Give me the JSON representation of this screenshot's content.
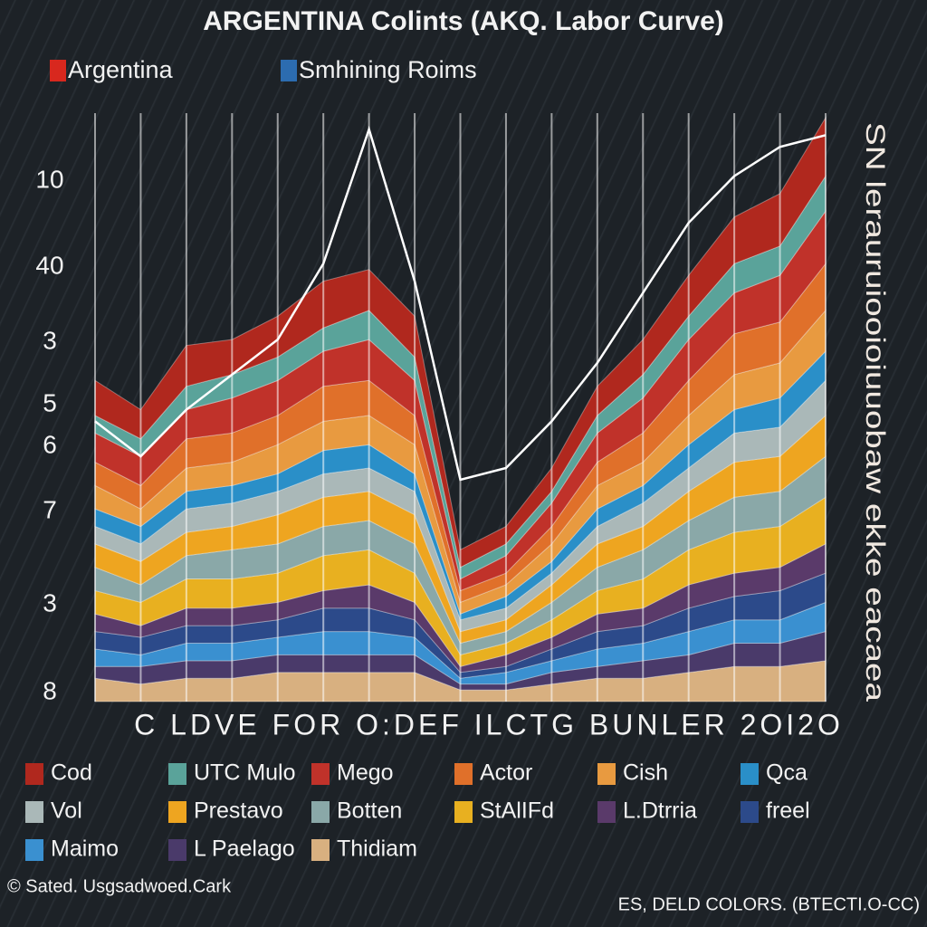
{
  "chart_data": {
    "type": "stacked_area",
    "title": "ARGENTINA Colints (AKQ. Labor Curve)",
    "legend_top": [
      {
        "name": "Argentina",
        "color": "#d8281e"
      },
      {
        "name": "Smhining Roims",
        "color": "#2c6cb0"
      }
    ],
    "y_labels": [
      "10",
      "40",
      "3",
      "5",
      "6",
      "7",
      "3",
      "8"
    ],
    "side_text": "SN lerauruiooioiuuobaw ekke eacaea",
    "xlabel": "C LDVE FOR O:DEF ILCTG BUNLER 2OI2O",
    "categories": [
      null,
      null,
      null,
      null,
      null,
      null,
      null,
      null,
      null,
      null,
      null,
      null,
      null,
      null,
      null,
      null,
      null
    ],
    "ylim": [
      0,
      100
    ],
    "grid": true,
    "series": [
      {
        "name": "Cod",
        "color": "#b0281e",
        "values": [
          6,
          5,
          7,
          6,
          7,
          8,
          7,
          7,
          3,
          3,
          4,
          5,
          6,
          7,
          8,
          9,
          10
        ]
      },
      {
        "name": "UTC Mulo",
        "color": "#5aa39a",
        "values": [
          3,
          3,
          4,
          4,
          4,
          4,
          5,
          4,
          2,
          2,
          2,
          3,
          4,
          4,
          5,
          5,
          6
        ]
      },
      {
        "name": "Mego",
        "color": "#c0322a",
        "values": [
          5,
          5,
          5,
          6,
          6,
          6,
          7,
          6,
          2,
          3,
          4,
          5,
          6,
          7,
          7,
          8,
          9
        ]
      },
      {
        "name": "Actor",
        "color": "#e0702a",
        "values": [
          4,
          4,
          5,
          5,
          5,
          6,
          6,
          5,
          2,
          2,
          3,
          4,
          5,
          6,
          7,
          7,
          8
        ]
      },
      {
        "name": "Cish",
        "color": "#e89a40",
        "values": [
          4,
          3,
          4,
          4,
          5,
          5,
          5,
          5,
          2,
          2,
          3,
          4,
          4,
          5,
          6,
          6,
          7
        ]
      },
      {
        "name": "Qca",
        "color": "#2a8fc8",
        "values": [
          3,
          3,
          3,
          3,
          3,
          4,
          4,
          3,
          1,
          2,
          2,
          3,
          3,
          4,
          4,
          5,
          5
        ]
      },
      {
        "name": "Vol",
        "color": "#aab8b8",
        "values": [
          3,
          3,
          4,
          4,
          4,
          4,
          4,
          4,
          2,
          2,
          2,
          3,
          4,
          4,
          5,
          5,
          6
        ]
      },
      {
        "name": "Prestavo",
        "color": "#eea520",
        "values": [
          4,
          4,
          4,
          4,
          5,
          5,
          5,
          5,
          2,
          2,
          3,
          4,
          4,
          5,
          6,
          6,
          7
        ]
      },
      {
        "name": "Botten",
        "color": "#8aa8a8",
        "values": [
          4,
          3,
          4,
          5,
          5,
          5,
          5,
          5,
          2,
          2,
          3,
          4,
          5,
          5,
          6,
          6,
          7
        ]
      },
      {
        "name": "StAlIFd",
        "color": "#e8b020",
        "values": [
          4,
          4,
          5,
          5,
          5,
          6,
          6,
          5,
          2,
          2,
          3,
          4,
          5,
          6,
          7,
          7,
          8
        ]
      },
      {
        "name": "L.Dtrria",
        "color": "#5a3a6a",
        "values": [
          3,
          2,
          3,
          3,
          3,
          3,
          4,
          3,
          1,
          2,
          2,
          3,
          3,
          4,
          4,
          4,
          5
        ]
      },
      {
        "name": "freel",
        "color": "#2c4a8a",
        "values": [
          3,
          3,
          3,
          3,
          3,
          4,
          4,
          3,
          1,
          1,
          2,
          3,
          3,
          4,
          4,
          5,
          5
        ]
      },
      {
        "name": "Maimo",
        "color": "#3a90d0",
        "values": [
          3,
          2,
          3,
          3,
          3,
          4,
          4,
          3,
          1,
          2,
          2,
          3,
          3,
          4,
          4,
          4,
          5
        ]
      },
      {
        "name": "L Paelago",
        "color": "#4a3a6a",
        "values": [
          2,
          3,
          3,
          3,
          3,
          3,
          3,
          3,
          1,
          1,
          2,
          2,
          3,
          3,
          4,
          4,
          5
        ]
      },
      {
        "name": "Thidiam",
        "color": "#d8b080",
        "values": [
          4,
          3,
          4,
          4,
          5,
          5,
          5,
          5,
          2,
          2,
          3,
          4,
          4,
          5,
          6,
          6,
          7
        ]
      }
    ],
    "lines": [
      {
        "color": "#ffffff",
        "values": [
          48,
          42,
          50,
          56,
          62,
          75,
          98,
          72,
          38,
          40,
          48,
          58,
          70,
          82,
          90,
          95,
          97
        ]
      }
    ]
  },
  "footer": {
    "left": "© Sated. Usgsadwoed.Cark",
    "right": "ES, DELD COLORS. (BTECTI.O-CC)"
  }
}
